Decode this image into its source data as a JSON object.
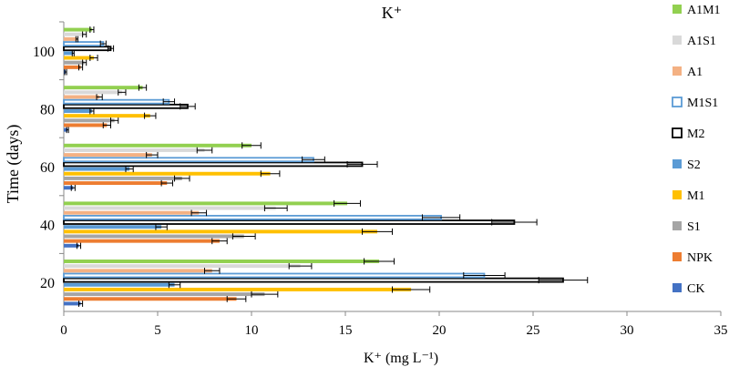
{
  "chart_data": {
    "type": "bar",
    "orientation": "horizontal",
    "title": "K⁺",
    "xlabel": "K⁺ (mg L⁻¹)",
    "ylabel": "Time (days)",
    "xlim": [
      0,
      35
    ],
    "x_ticks": [
      "0",
      "5",
      "10",
      "15",
      "20",
      "25",
      "30",
      "35"
    ],
    "categories": [
      "20",
      "40",
      "60",
      "80",
      "100"
    ],
    "grid": false,
    "legend_position": "right",
    "series": [
      {
        "name": "CK",
        "color": "#4472c4",
        "style": "filled",
        "values": [
          0.9,
          0.8,
          0.5,
          0.2,
          0.1
        ],
        "errors": [
          0.1,
          0.1,
          0.1,
          0.05,
          0.05
        ]
      },
      {
        "name": "NPK",
        "color": "#ed7d31",
        "style": "filled",
        "values": [
          9.2,
          8.3,
          5.5,
          2.3,
          0.9
        ],
        "errors": [
          0.5,
          0.4,
          0.3,
          0.2,
          0.1
        ]
      },
      {
        "name": "S1",
        "color": "#a5a5a5",
        "style": "filled",
        "values": [
          10.7,
          9.6,
          6.3,
          2.7,
          1.1
        ],
        "errors": [
          0.7,
          0.6,
          0.4,
          0.2,
          0.1
        ]
      },
      {
        "name": "M1",
        "color": "#ffc000",
        "style": "filled",
        "values": [
          18.5,
          16.7,
          11.0,
          4.6,
          1.6
        ],
        "errors": [
          1.0,
          0.8,
          0.5,
          0.3,
          0.2
        ]
      },
      {
        "name": "S2",
        "color": "#5b9bd5",
        "style": "filled",
        "values": [
          5.9,
          5.2,
          3.5,
          1.5,
          0.5
        ],
        "errors": [
          0.3,
          0.3,
          0.2,
          0.1,
          0.05
        ]
      },
      {
        "name": "M2",
        "color": "#000000",
        "style": "outline",
        "values": [
          26.6,
          24.0,
          15.9,
          6.6,
          2.5
        ],
        "errors": [
          1.3,
          1.2,
          0.8,
          0.4,
          0.15
        ]
      },
      {
        "name": "M1S1",
        "color": "#5b9bd5",
        "style": "outline",
        "values": [
          22.4,
          20.1,
          13.3,
          5.6,
          2.1
        ],
        "errors": [
          1.1,
          1.0,
          0.6,
          0.3,
          0.15
        ]
      },
      {
        "name": "A1",
        "color": "#f4b183",
        "style": "filled",
        "values": [
          7.9,
          7.2,
          4.7,
          1.9,
          0.7
        ],
        "errors": [
          0.4,
          0.4,
          0.3,
          0.15,
          0.05
        ]
      },
      {
        "name": "A1S1",
        "color": "#d9d9d9",
        "style": "filled",
        "values": [
          12.6,
          11.3,
          7.5,
          3.1,
          1.1
        ],
        "errors": [
          0.6,
          0.6,
          0.4,
          0.2,
          0.1
        ]
      },
      {
        "name": "A1M1",
        "color": "#92d050",
        "style": "filled",
        "values": [
          16.8,
          15.1,
          10.0,
          4.2,
          1.5
        ],
        "errors": [
          0.8,
          0.7,
          0.5,
          0.2,
          0.1
        ]
      }
    ]
  }
}
